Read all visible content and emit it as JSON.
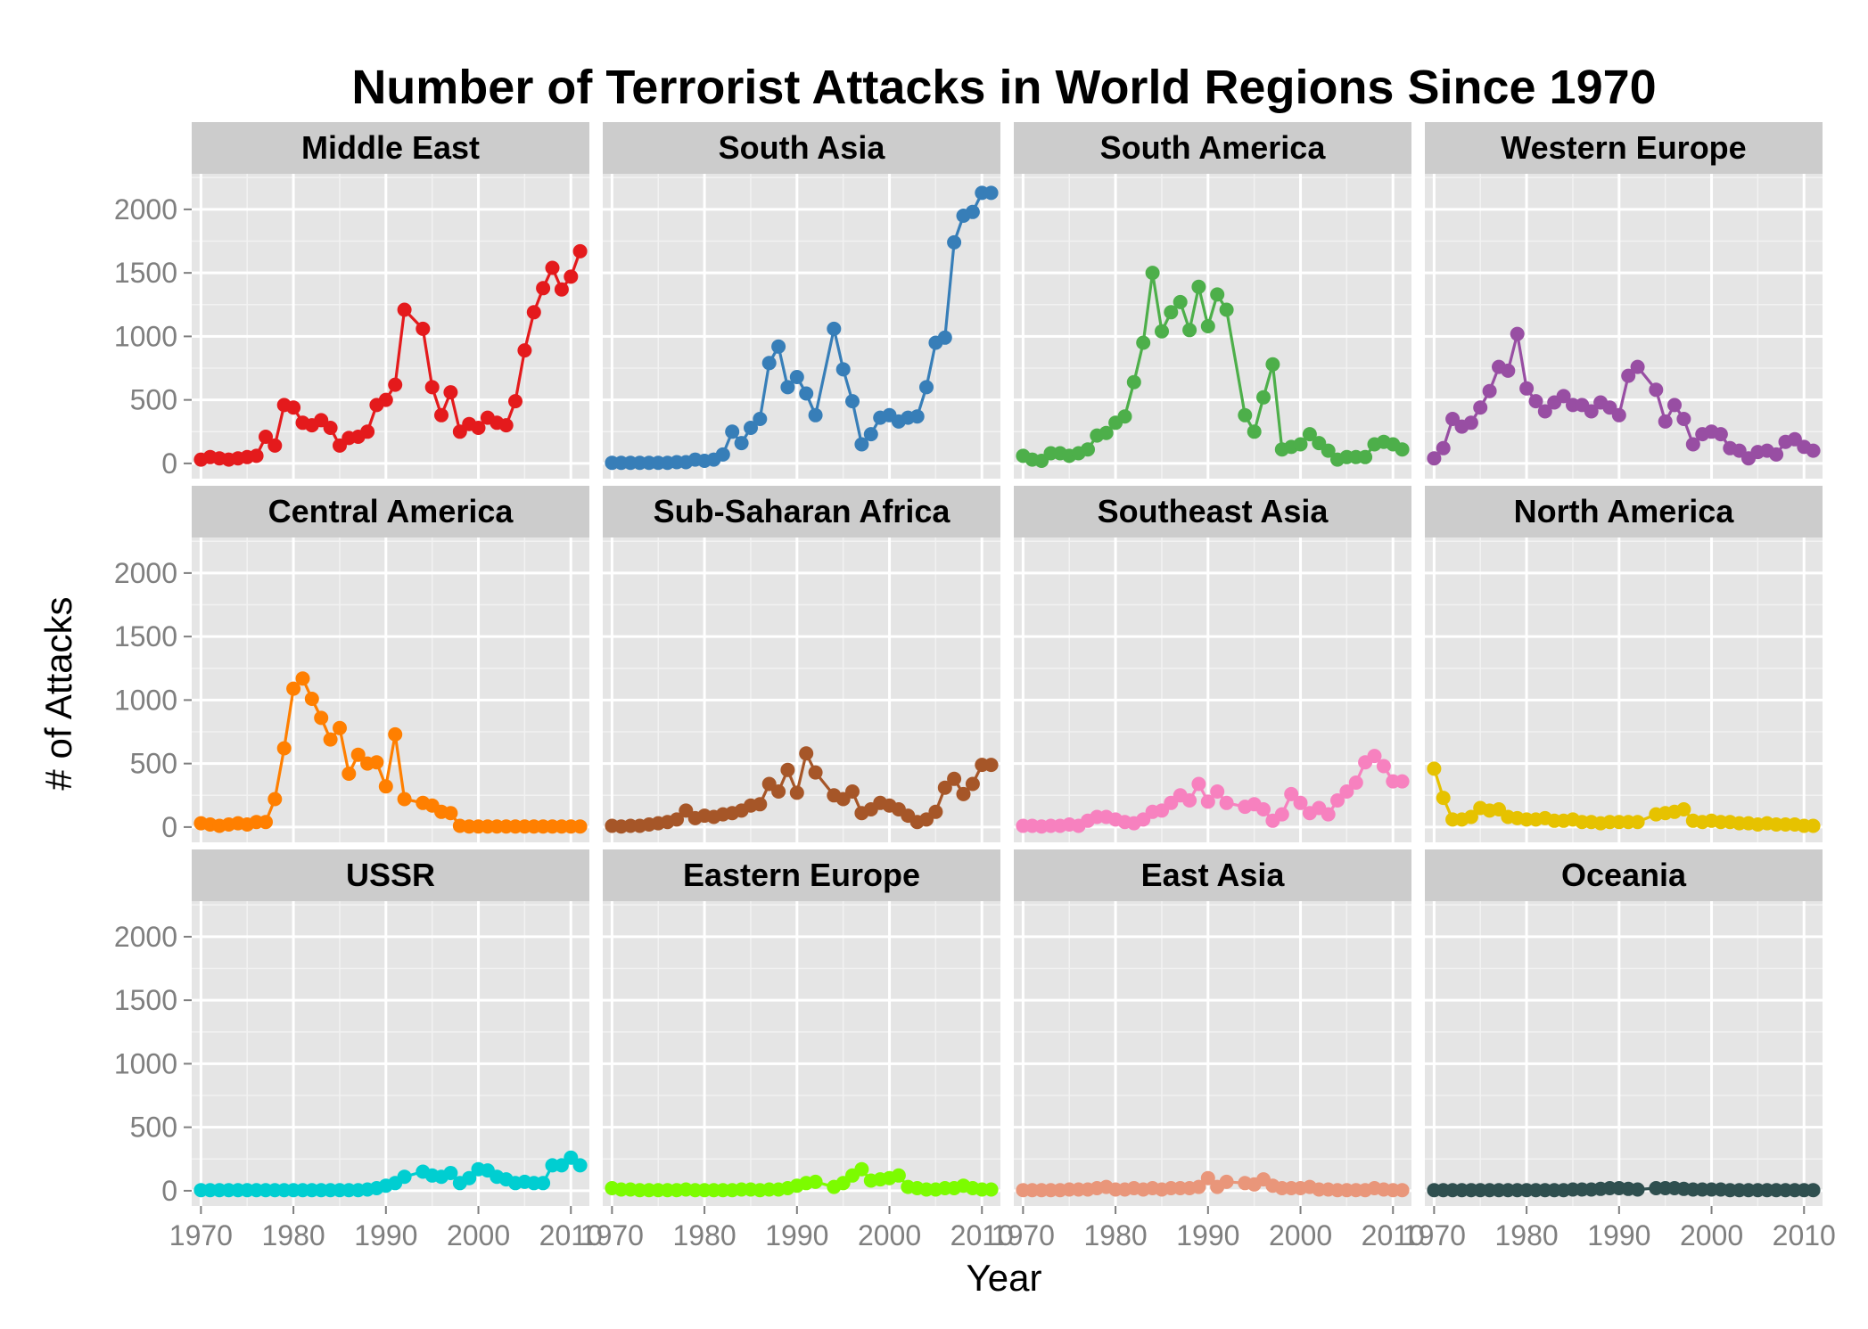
{
  "chart_data": {
    "type": "line",
    "title": "Number of Terrorist Attacks in World Regions Since 1970",
    "xlabel": "Year",
    "ylabel": "# of Attacks",
    "xlim": [
      1969,
      2012
    ],
    "ylim": [
      -120,
      2280
    ],
    "x_ticks": [
      1970,
      1980,
      1990,
      2000,
      2010
    ],
    "y_ticks": [
      0,
      500,
      1000,
      1500,
      2000
    ],
    "x_tick_labels": [
      "1970",
      "1980",
      "1990",
      "2000",
      "2010"
    ],
    "y_tick_labels": [
      "0",
      "500",
      "1000",
      "1500",
      "2000"
    ],
    "x": [
      1970,
      1971,
      1972,
      1973,
      1974,
      1975,
      1976,
      1977,
      1978,
      1979,
      1980,
      1981,
      1982,
      1983,
      1984,
      1985,
      1986,
      1987,
      1988,
      1989,
      1990,
      1991,
      1992,
      1994,
      1995,
      1996,
      1997,
      1998,
      1999,
      2000,
      2001,
      2002,
      2003,
      2004,
      2005,
      2006,
      2007,
      2008,
      2009,
      2010,
      2011
    ],
    "grid": true,
    "legend": "none",
    "facets": {
      "rows": 3,
      "cols": 4
    },
    "series": [
      {
        "name": "Middle East",
        "color": "#e41a1c",
        "values": [
          30,
          50,
          40,
          30,
          40,
          50,
          60,
          210,
          140,
          460,
          440,
          320,
          300,
          340,
          280,
          140,
          200,
          210,
          250,
          460,
          500,
          620,
          1210,
          1060,
          600,
          380,
          560,
          250,
          310,
          280,
          360,
          320,
          300,
          490,
          890,
          1190,
          1380,
          1540,
          1370,
          1470,
          1670
        ]
      },
      {
        "name": "South Asia",
        "color": "#377eb8",
        "values": [
          5,
          5,
          5,
          5,
          5,
          5,
          5,
          10,
          10,
          30,
          20,
          30,
          70,
          250,
          160,
          280,
          350,
          790,
          920,
          600,
          680,
          550,
          380,
          1060,
          740,
          490,
          150,
          230,
          360,
          380,
          330,
          360,
          370,
          600,
          950,
          990,
          1740,
          1950,
          1980,
          2130,
          2130
        ]
      },
      {
        "name": "South America",
        "color": "#4daf4a",
        "values": [
          60,
          30,
          20,
          80,
          80,
          60,
          80,
          110,
          220,
          240,
          320,
          370,
          640,
          950,
          1500,
          1040,
          1190,
          1270,
          1050,
          1390,
          1080,
          1330,
          1210,
          380,
          250,
          520,
          780,
          110,
          130,
          150,
          230,
          160,
          100,
          30,
          50,
          50,
          50,
          150,
          170,
          150,
          110
        ]
      },
      {
        "name": "Western Europe",
        "color": "#984ea3",
        "values": [
          40,
          120,
          350,
          290,
          320,
          440,
          570,
          760,
          730,
          1020,
          590,
          490,
          410,
          480,
          530,
          460,
          460,
          410,
          480,
          440,
          380,
          690,
          760,
          580,
          330,
          460,
          350,
          150,
          230,
          250,
          230,
          120,
          100,
          40,
          90,
          100,
          70,
          170,
          190,
          130,
          100
        ]
      },
      {
        "name": "Central America",
        "color": "#ff7f00",
        "values": [
          30,
          20,
          10,
          20,
          30,
          20,
          40,
          40,
          220,
          620,
          1090,
          1170,
          1010,
          860,
          690,
          780,
          420,
          570,
          500,
          510,
          320,
          730,
          220,
          190,
          170,
          120,
          110,
          10,
          5,
          5,
          5,
          5,
          5,
          5,
          5,
          5,
          5,
          5,
          5,
          5,
          5
        ]
      },
      {
        "name": "Sub-Saharan Africa",
        "color": "#a65628",
        "values": [
          10,
          5,
          10,
          10,
          20,
          30,
          40,
          60,
          130,
          70,
          90,
          80,
          100,
          110,
          130,
          170,
          180,
          340,
          280,
          450,
          270,
          580,
          430,
          250,
          220,
          280,
          110,
          140,
          190,
          170,
          140,
          90,
          40,
          60,
          120,
          310,
          380,
          260,
          340,
          490,
          490
        ]
      },
      {
        "name": "Southeast Asia",
        "color": "#f781bf",
        "values": [
          10,
          10,
          5,
          10,
          10,
          20,
          10,
          50,
          80,
          80,
          60,
          40,
          30,
          60,
          120,
          130,
          190,
          250,
          210,
          340,
          200,
          280,
          190,
          160,
          180,
          140,
          50,
          100,
          260,
          190,
          110,
          150,
          100,
          210,
          280,
          350,
          510,
          560,
          480,
          360,
          360
        ]
      },
      {
        "name": "North America",
        "color": "#e6c200",
        "values": [
          460,
          230,
          60,
          60,
          80,
          150,
          130,
          140,
          80,
          70,
          60,
          60,
          70,
          50,
          50,
          60,
          40,
          40,
          30,
          40,
          40,
          40,
          40,
          100,
          110,
          120,
          140,
          50,
          40,
          50,
          40,
          40,
          30,
          30,
          20,
          30,
          20,
          20,
          20,
          10,
          10
        ]
      },
      {
        "name": "USSR",
        "color": "#00ced1",
        "values": [
          5,
          5,
          5,
          5,
          5,
          5,
          5,
          5,
          5,
          5,
          5,
          5,
          5,
          5,
          5,
          5,
          5,
          5,
          10,
          20,
          40,
          60,
          110,
          150,
          120,
          110,
          140,
          60,
          100,
          170,
          160,
          110,
          90,
          60,
          70,
          60,
          60,
          200,
          200,
          260,
          200
        ]
      },
      {
        "name": "Eastern Europe",
        "color": "#7cfc00",
        "values": [
          20,
          10,
          10,
          5,
          5,
          5,
          5,
          5,
          10,
          5,
          5,
          5,
          5,
          5,
          10,
          10,
          5,
          10,
          10,
          20,
          40,
          60,
          70,
          30,
          60,
          120,
          170,
          80,
          90,
          100,
          120,
          30,
          20,
          10,
          10,
          20,
          20,
          40,
          20,
          10,
          10
        ]
      },
      {
        "name": "East Asia",
        "color": "#e9967a",
        "values": [
          5,
          5,
          5,
          5,
          5,
          10,
          10,
          10,
          20,
          30,
          10,
          10,
          20,
          10,
          20,
          10,
          20,
          20,
          20,
          30,
          100,
          30,
          70,
          60,
          50,
          90,
          40,
          20,
          20,
          20,
          30,
          10,
          10,
          5,
          5,
          5,
          5,
          20,
          10,
          5,
          5
        ]
      },
      {
        "name": "Oceania",
        "color": "#2f4f4f",
        "values": [
          5,
          5,
          5,
          5,
          5,
          5,
          5,
          5,
          5,
          5,
          5,
          5,
          5,
          5,
          5,
          10,
          10,
          10,
          15,
          20,
          20,
          15,
          10,
          20,
          20,
          20,
          15,
          10,
          10,
          10,
          10,
          5,
          5,
          5,
          5,
          5,
          5,
          5,
          5,
          5,
          5
        ]
      }
    ]
  }
}
